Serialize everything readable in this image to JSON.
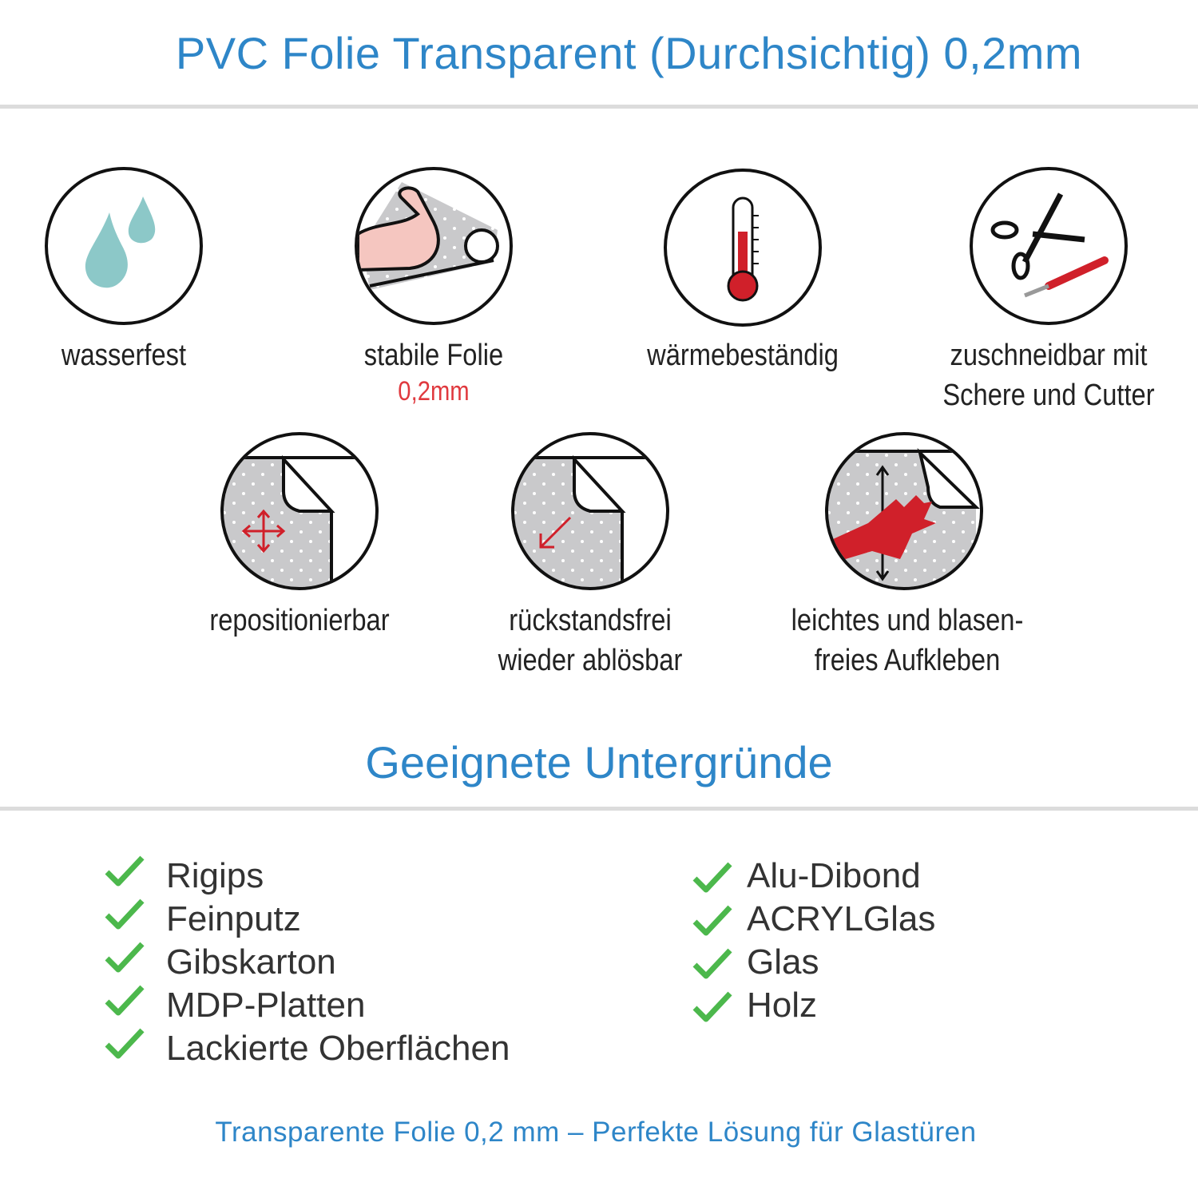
{
  "header": {
    "title": "PVC Folie Transparent (Durchsichtig) 0,2mm"
  },
  "features": [
    {
      "label": "wasserfest",
      "icon": "water-drops-icon"
    },
    {
      "label": "stabile Folie",
      "sublabel": "0,2mm",
      "icon": "strong-arm-roll-icon"
    },
    {
      "label": "wärmebeständig",
      "icon": "thermometer-icon"
    },
    {
      "label": "zuschneidbar mit",
      "label2": "Schere und Cutter",
      "icon": "scissors-cutter-icon"
    },
    {
      "label": "repositionierbar",
      "icon": "move-arrows-sheet-icon"
    },
    {
      "label": "rückstandsfrei",
      "label2": "wieder ablösbar",
      "icon": "peel-sheet-icon"
    },
    {
      "label": "leichtes und blasen-",
      "label2": "freies Aufkleben",
      "icon": "hand-smooth-sheet-icon"
    }
  ],
  "surfaces": {
    "title": "Geeignete Untergründe",
    "left": [
      "Rigips",
      "Feinputz",
      "Gibskarton",
      "MDP-Platten",
      "Lackierte Oberflächen"
    ],
    "right": [
      "Alu-Dibond",
      "ACRYLGlas",
      "Glas",
      "Holz"
    ]
  },
  "footer": {
    "text": "Transparente Folie 0,2 mm – Perfekte Lösung für Glastüren"
  },
  "colors": {
    "accent": "#2e86c8",
    "check": "#4cb84c",
    "red": "#d0202a",
    "drop": "#8cc8c8"
  }
}
